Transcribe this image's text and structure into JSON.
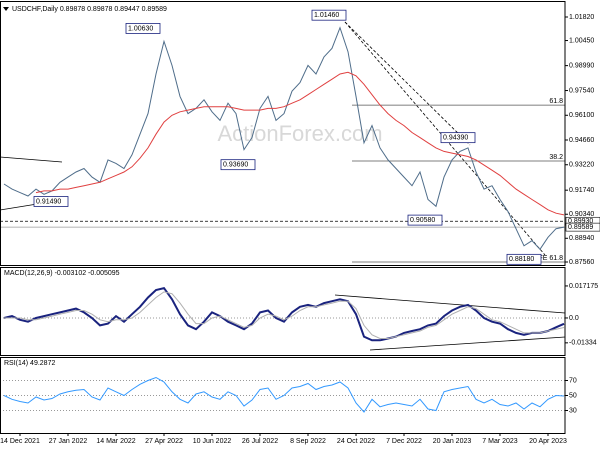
{
  "chart_data": [
    {
      "type": "line",
      "title": "USDCHF,Daily 0.89878 0.89878 0.89447 0.89589",
      "watermark": "ActionForex.com",
      "ylim": [
        1.02693,
        0.87385
      ],
      "yticks": [
        {
          "value": 1.0182,
          "label": "1.01820"
        },
        {
          "value": 1.0045,
          "label": "1.00450"
        },
        {
          "value": 0.9899,
          "label": "0.98990"
        },
        {
          "value": 0.9754,
          "label": "0.97540"
        },
        {
          "value": 0.961,
          "label": "0.96100"
        },
        {
          "value": 0.9466,
          "label": "0.94660"
        },
        {
          "value": 0.9322,
          "label": "0.93220"
        },
        {
          "value": 0.9174,
          "label": "0.91740"
        },
        {
          "value": 0.9034,
          "label": "0.90340"
        },
        {
          "value": 0.8894,
          "label": "0.88940"
        },
        {
          "value": 0.8756,
          "label": "0.87560"
        }
      ],
      "series": [
        {
          "name": "USDCHF",
          "color": "#4f6d8a",
          "values": [
            0.921,
            0.918,
            0.916,
            0.914,
            0.918,
            0.915,
            0.917,
            0.922,
            0.925,
            0.928,
            0.93,
            0.925,
            0.922,
            0.935,
            0.933,
            0.93,
            0.938,
            0.95,
            0.962,
            0.985,
            1.004,
            0.99,
            0.972,
            0.962,
            0.965,
            0.97,
            0.963,
            0.958,
            0.968,
            0.962,
            0.941,
            0.948,
            0.965,
            0.972,
            0.958,
            0.962,
            0.975,
            0.98,
            0.99,
            0.985,
            0.995,
            1.0,
            1.012,
            0.998,
            0.972,
            0.945,
            0.955,
            0.942,
            0.935,
            0.93,
            0.925,
            0.92,
            0.928,
            0.912,
            0.908,
            0.925,
            0.935,
            0.94,
            0.942,
            0.928,
            0.918,
            0.92,
            0.912,
            0.905,
            0.895,
            0.885,
            0.888,
            0.883,
            0.89,
            0.895,
            0.8959
          ]
        },
        {
          "name": "SMA",
          "color": "#e04040",
          "values": [
            null,
            null,
            null,
            null,
            0.916,
            0.917,
            0.917,
            0.918,
            0.918,
            0.919,
            0.92,
            0.921,
            0.922,
            0.924,
            0.926,
            0.928,
            0.931,
            0.936,
            0.942,
            0.95,
            0.957,
            0.961,
            0.963,
            0.964,
            0.965,
            0.966,
            0.966,
            0.966,
            0.966,
            0.965,
            0.964,
            0.964,
            0.964,
            0.965,
            0.965,
            0.966,
            0.968,
            0.97,
            0.973,
            0.976,
            0.979,
            0.982,
            0.985,
            0.986,
            0.984,
            0.979,
            0.973,
            0.967,
            0.962,
            0.958,
            0.955,
            0.951,
            0.948,
            0.945,
            0.942,
            0.94,
            0.939,
            0.938,
            0.937,
            0.935,
            0.932,
            0.929,
            0.926,
            0.922,
            0.918,
            0.915,
            0.912,
            0.909,
            0.906,
            0.904,
            0.903
          ]
        }
      ],
      "annotations": [
        {
          "label": "1.00630",
          "value": 1.0063
        },
        {
          "label": "1.01460",
          "value": 1.0146
        },
        {
          "label": "0.93690",
          "value": 0.9369
        },
        {
          "label": "0.94390",
          "value": 0.9439
        },
        {
          "label": "0.90580",
          "value": 0.9058
        },
        {
          "label": "0.88180",
          "value": 0.8818
        },
        {
          "label": "0.91490",
          "value": 0.9149
        }
      ],
      "levels": [
        {
          "label": "61.8",
          "value": 0.9669
        },
        {
          "label": "38.2",
          "value": 0.9344
        },
        {
          "label": "FE 61.8",
          "value": 0.8756
        }
      ],
      "price_lines": [
        {
          "label": "0.89930",
          "value": 0.8993
        },
        {
          "label": "0.89589",
          "value": 0.89589
        }
      ]
    },
    {
      "type": "line",
      "title": "MACD(12,26,9) -0.003102 -0.005095",
      "ylim": [
        -0.01986,
        0.0268
      ],
      "yticks": [
        0.017175,
        {
          "value": 0,
          "label": "0.0"
        },
        -0.01334
      ],
      "series": [
        {
          "name": "MACD",
          "color": "#1a237e",
          "values": [
            0,
            0.001,
            -0.001,
            -0.002,
            0,
            0.001,
            0.002,
            0.003,
            0.004,
            0.005,
            0.003,
            0,
            -0.004,
            -0.003,
            0.001,
            -0.002,
            0.002,
            0.006,
            0.011,
            0.015,
            0.016,
            0.01,
            0.002,
            -0.004,
            -0.006,
            -0.002,
            0.003,
            0.001,
            -0.002,
            -0.004,
            -0.006,
            -0.003,
            0.003,
            0.004,
            0,
            -0.002,
            0.003,
            0.006,
            0.007,
            0.006,
            0.008,
            0.009,
            0.01,
            0.009,
            0.002,
            -0.01,
            -0.012,
            -0.012,
            -0.011,
            -0.01,
            -0.008,
            -0.007,
            -0.006,
            -0.004,
            -0.003,
            0.001,
            0.004,
            0.006,
            0.007,
            0.004,
            0,
            -0.002,
            -0.003,
            -0.006,
            -0.008,
            -0.009,
            -0.008,
            -0.008,
            -0.007,
            -0.005,
            -0.0031
          ]
        },
        {
          "name": "Signal",
          "color": "#b0b0b0",
          "values": [
            0,
            0,
            0,
            -0.001,
            -0.001,
            0,
            0.001,
            0.002,
            0.003,
            0.004,
            0.004,
            0.002,
            -0.001,
            -0.002,
            -0.001,
            -0.001,
            0,
            0.003,
            0.007,
            0.011,
            0.014,
            0.013,
            0.008,
            0.002,
            -0.003,
            -0.003,
            0,
            0.001,
            -0.001,
            -0.003,
            -0.005,
            -0.004,
            0,
            0.002,
            0.001,
            -0.001,
            0.001,
            0.004,
            0.006,
            0.006,
            0.007,
            0.008,
            0.009,
            0.009,
            0.005,
            -0.004,
            -0.009,
            -0.011,
            -0.011,
            -0.01,
            -0.009,
            -0.008,
            -0.007,
            -0.005,
            -0.004,
            -0.001,
            0.002,
            0.004,
            0.006,
            0.005,
            0.002,
            -0.001,
            -0.002,
            -0.004,
            -0.006,
            -0.008,
            -0.008,
            -0.008,
            -0.007,
            -0.006,
            -0.0051
          ]
        }
      ]
    },
    {
      "type": "line",
      "title": "RSI(14) 49.2872",
      "ylim": [
        0,
        100
      ],
      "yticks": [
        30,
        50,
        70
      ],
      "categories": [
        null,
        null,
        "14 Dec 2021",
        null,
        null,
        null,
        null,
        null,
        "27 Jan 2022",
        null,
        null,
        null,
        null,
        null,
        "14 Mar 2022",
        null,
        null,
        null,
        null,
        null,
        "27 Apr 2022",
        null,
        null,
        null,
        null,
        null,
        "10 Jun 2022",
        null,
        null,
        null,
        null,
        null,
        "26 Jul 2022",
        null,
        null,
        null,
        null,
        null,
        "8 Sep 2022",
        null,
        null,
        null,
        null,
        null,
        "24 Oct 2022",
        null,
        null,
        null,
        null,
        null,
        "7 Dec 2022",
        null,
        null,
        null,
        null,
        null,
        "20 Jan 2023",
        null,
        null,
        null,
        null,
        null,
        "7 Mar 2023",
        null,
        null,
        null,
        null,
        null,
        "20 Apr 2023",
        null,
        null
      ],
      "series": [
        {
          "name": "RSI",
          "color": "#3399ff",
          "values": [
            50,
            45,
            42,
            40,
            48,
            44,
            46,
            52,
            55,
            57,
            58,
            48,
            44,
            60,
            55,
            50,
            58,
            65,
            70,
            74,
            68,
            55,
            45,
            40,
            52,
            55,
            48,
            45,
            55,
            50,
            36,
            44,
            58,
            60,
            45,
            50,
            60,
            62,
            66,
            58,
            62,
            64,
            68,
            60,
            40,
            28,
            45,
            35,
            38,
            40,
            38,
            36,
            45,
            32,
            30,
            55,
            58,
            60,
            62,
            45,
            40,
            45,
            38,
            36,
            40,
            32,
            40,
            35,
            45,
            50,
            49.3
          ]
        }
      ]
    }
  ]
}
